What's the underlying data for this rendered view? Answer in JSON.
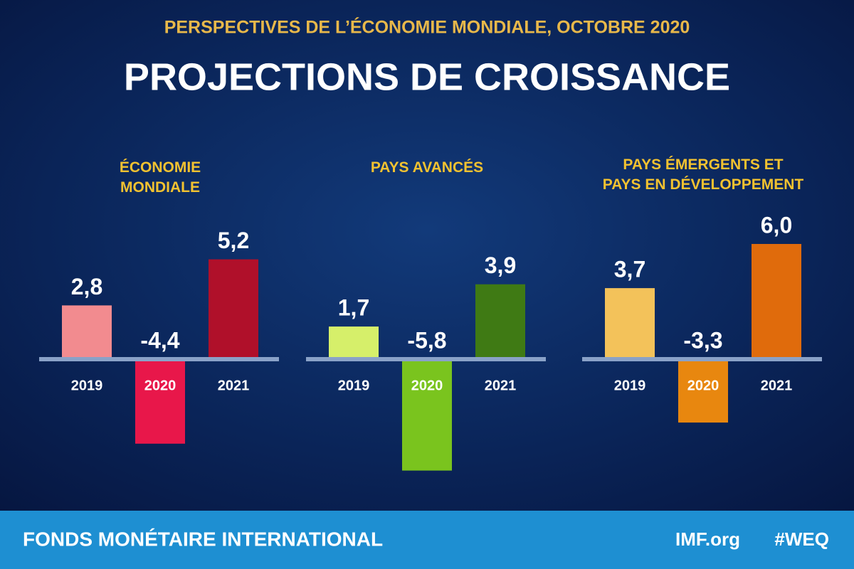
{
  "header": {
    "subtitle": "PERSPECTIVES DE L’ÉCONOMIE MONDIALE, OCTOBRE 2020",
    "title": "PROJECTIONS DE CROISSANCE"
  },
  "chart_data": [
    {
      "type": "bar",
      "title": "ÉCONOMIE MONDIALE",
      "categories": [
        "2019",
        "2020",
        "2021"
      ],
      "values": [
        2.8,
        -4.4,
        5.2
      ],
      "value_labels": [
        "2,8",
        "-4,4",
        "5,2"
      ],
      "colors": [
        "#f28b8f",
        "#e8174a",
        "#b0102a"
      ]
    },
    {
      "type": "bar",
      "title": "PAYS AVANCÉS",
      "categories": [
        "2019",
        "2020",
        "2021"
      ],
      "values": [
        1.7,
        -5.8,
        3.9
      ],
      "value_labels": [
        "1,7",
        "-5,8",
        "3,9"
      ],
      "colors": [
        "#d6ef6a",
        "#7ac41e",
        "#3f7a14"
      ]
    },
    {
      "type": "bar",
      "title": "PAYS ÉMERGENTS ET PAYS EN DÉVELOPPEMENT",
      "categories": [
        "2019",
        "2020",
        "2021"
      ],
      "values": [
        3.7,
        -3.3,
        6.0
      ],
      "value_labels": [
        "3,7",
        "-3,3",
        "6,0"
      ],
      "colors": [
        "#f3c25a",
        "#e8870f",
        "#e06b0c"
      ]
    }
  ],
  "footer": {
    "organization": "FONDS MONÉTAIRE INTERNATIONAL",
    "website": "IMF.org",
    "hashtag": "#WEQ"
  }
}
